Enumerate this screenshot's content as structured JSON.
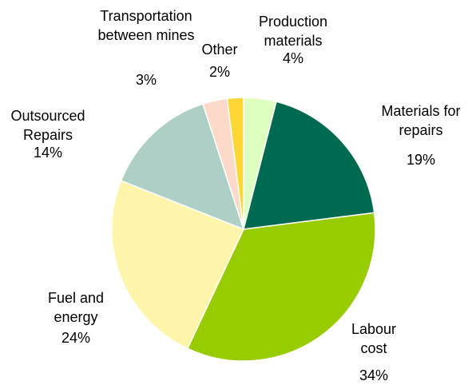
{
  "chart_data": {
    "type": "pie",
    "categories": [
      "Production materials",
      "Materials for repairs",
      "Labour cost",
      "Fuel and energy",
      "Outsourced Repairs",
      "Transportation between mines",
      "Other"
    ],
    "values": [
      4,
      19,
      34,
      24,
      14,
      3,
      2
    ],
    "value_labels": [
      "4%",
      "19%",
      "34%",
      "24%",
      "14%",
      "3%",
      "2%"
    ],
    "colors": [
      "#ddffc0",
      "#006a50",
      "#99cc00",
      "#fff5aa",
      "#aecfc6",
      "#fcd9c8",
      "#ffd633"
    ]
  }
}
